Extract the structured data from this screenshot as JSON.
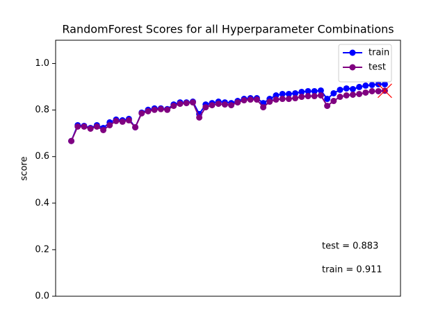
{
  "chart_data": {
    "type": "line",
    "title": "RandomForest Scores for all Hyperparameter Combinations",
    "y_label": "score",
    "x": [
      0,
      1,
      2,
      3,
      4,
      5,
      6,
      7,
      8,
      9,
      10,
      11,
      12,
      13,
      14,
      15,
      16,
      17,
      18,
      19,
      20,
      21,
      22,
      23,
      24,
      25,
      26,
      27,
      28,
      29,
      30,
      31,
      32,
      33,
      34,
      35,
      36,
      37,
      38,
      39,
      40,
      41,
      42,
      43,
      44,
      45,
      46,
      47,
      48,
      49
    ],
    "xlim": [
      -2.45,
      51.45
    ],
    "ylim": [
      0,
      1.1
    ],
    "yticks": [
      {
        "value": 0,
        "label": "0.0"
      },
      {
        "value": 0.2,
        "label": "0.2"
      },
      {
        "value": 0.4,
        "label": "0.4"
      },
      {
        "value": 0.6,
        "label": "0.6"
      },
      {
        "value": 0.8,
        "label": "0.8"
      },
      {
        "value": 1,
        "label": "1.0"
      }
    ],
    "legend": "upper right",
    "grid": false,
    "highlight_color": "#ff0000",
    "series": [
      {
        "name": "train",
        "color": "#0000ff",
        "values": [
          0.667,
          0.735,
          0.732,
          0.723,
          0.735,
          0.723,
          0.747,
          0.759,
          0.756,
          0.762,
          0.726,
          0.789,
          0.801,
          0.807,
          0.807,
          0.804,
          0.824,
          0.833,
          0.833,
          0.836,
          0.783,
          0.824,
          0.83,
          0.836,
          0.833,
          0.83,
          0.839,
          0.848,
          0.851,
          0.851,
          0.83,
          0.848,
          0.863,
          0.869,
          0.869,
          0.872,
          0.878,
          0.881,
          0.881,
          0.884,
          0.848,
          0.872,
          0.887,
          0.893,
          0.89,
          0.899,
          0.905,
          0.908,
          0.911,
          0.911
        ]
      },
      {
        "name": "test",
        "color": "#800080",
        "values": [
          0.667,
          0.729,
          0.729,
          0.72,
          0.729,
          0.714,
          0.735,
          0.753,
          0.75,
          0.756,
          0.726,
          0.786,
          0.795,
          0.801,
          0.804,
          0.801,
          0.818,
          0.827,
          0.83,
          0.833,
          0.768,
          0.812,
          0.821,
          0.827,
          0.824,
          0.821,
          0.833,
          0.842,
          0.845,
          0.845,
          0.812,
          0.836,
          0.845,
          0.848,
          0.848,
          0.851,
          0.857,
          0.86,
          0.86,
          0.863,
          0.818,
          0.839,
          0.857,
          0.863,
          0.866,
          0.869,
          0.875,
          0.881,
          0.881,
          0.883
        ]
      }
    ],
    "annotations": [
      {
        "text": "test = 0.883",
        "color": "#800080"
      },
      {
        "text": "train = 0.911",
        "color": "#0000ff"
      }
    ]
  }
}
